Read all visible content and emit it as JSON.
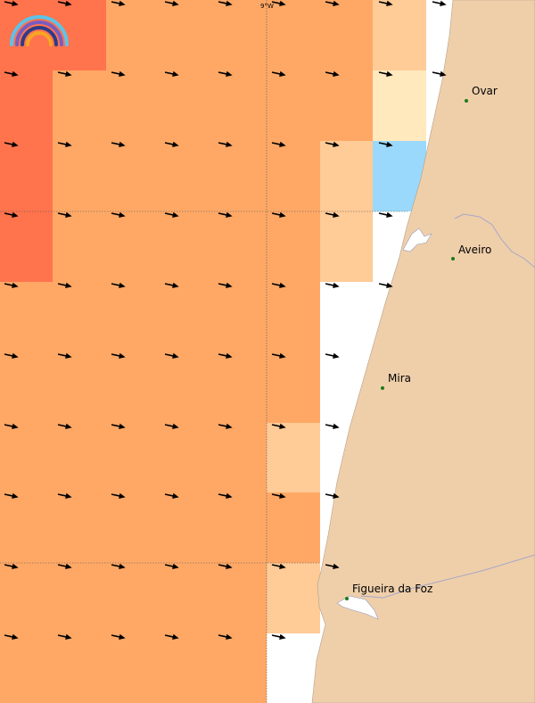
{
  "map": {
    "graticule_label": "9°W",
    "places": [
      {
        "name": "Ovar"
      },
      {
        "name": "Aveiro"
      },
      {
        "name": "Mira"
      },
      {
        "name": "Figueira da Foz"
      }
    ],
    "colors": {
      "land": "#efcfaa",
      "land_border": "#a7a7c7",
      "sea": "#ffffff",
      "cell_red": "#ff734d",
      "cell_orange": "#ffa866",
      "cell_light_orange": "#ffcb97",
      "cell_cream": "#ffe9bd",
      "cell_blue": "#9ad9fb",
      "place_marker": "#1a7a1a",
      "arrow": "#000000"
    },
    "logo": {
      "name": "rainbow-logo-icon"
    }
  }
}
